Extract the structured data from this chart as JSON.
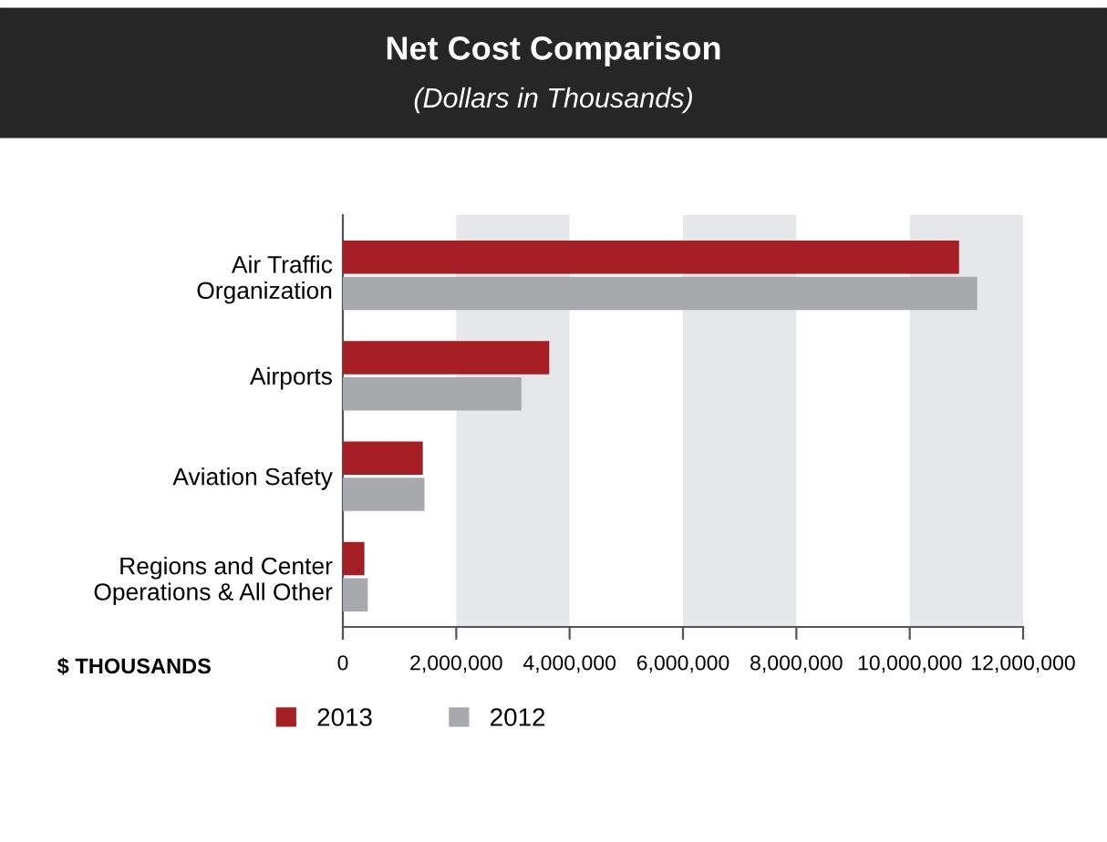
{
  "chart_data": {
    "type": "bar",
    "orientation": "horizontal",
    "title": "Net Cost Comparison",
    "subtitle": "(Dollars in Thousands)",
    "xlabel": "$ THOUSANDS",
    "categories": [
      "Air Traffic\nOrganization",
      "Airports",
      "Aviation Safety",
      "Regions and Center\nOperations & All Other"
    ],
    "series": [
      {
        "name": "2013",
        "color": "#a41e23",
        "values": [
          10870000,
          3640000,
          1410000,
          380000
        ]
      },
      {
        "name": "2012",
        "color": "#a7a9ac",
        "values": [
          11190000,
          3150000,
          1440000,
          440000
        ]
      }
    ],
    "xlim": [
      0,
      12000000
    ],
    "xticks": [
      {
        "value": 0,
        "label": "0"
      },
      {
        "value": 2000000,
        "label": "2,000,000"
      },
      {
        "value": 4000000,
        "label": "4,000,000"
      },
      {
        "value": 6000000,
        "label": "6,000,000"
      },
      {
        "value": 8000000,
        "label": "8,000,000"
      },
      {
        "value": 10000000,
        "label": "10,000,000"
      },
      {
        "value": 12000000,
        "label": "12,000,000"
      }
    ],
    "bands": [
      {
        "axis": "x",
        "from": 2000000,
        "to": 4000000,
        "color": "#e6e7e8"
      },
      {
        "axis": "x",
        "from": 6000000,
        "to": 8000000,
        "color": "#e6e7e8"
      },
      {
        "axis": "x",
        "from": 10000000,
        "to": 12000000,
        "color": "#e6e7e8"
      }
    ],
    "grid": false,
    "legend": "bottom"
  }
}
